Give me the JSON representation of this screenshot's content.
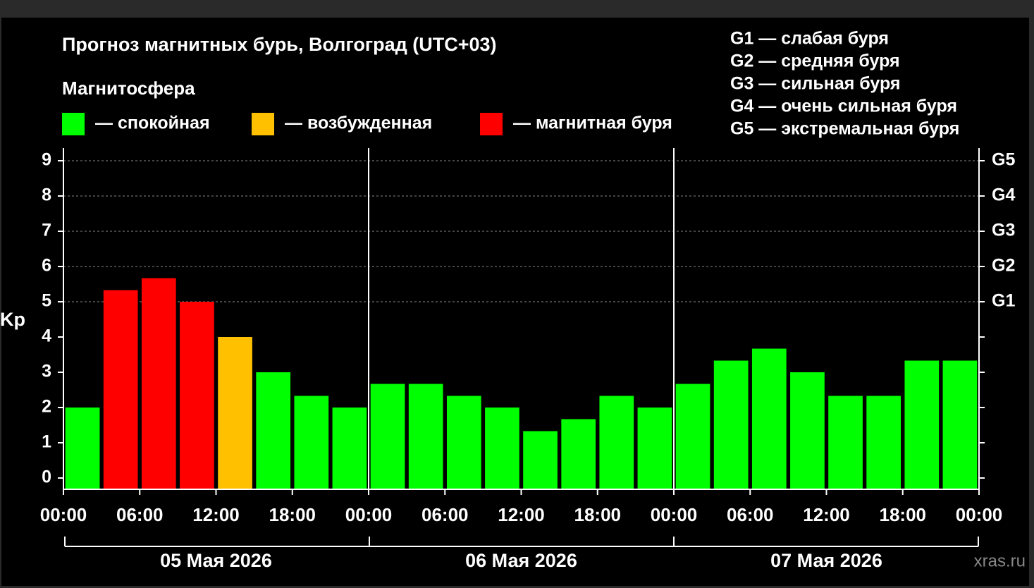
{
  "chart_data": {
    "type": "bar",
    "title": "Прогноз магнитных бурь, Волгоград (UTC+03)",
    "legend_title": "Магнитосфера",
    "legend": [
      {
        "name": "— спокойная",
        "color": "#00ff00"
      },
      {
        "name": "— возбужденная",
        "color": "#ffc000"
      },
      {
        "name": "— магнитная буря",
        "color": "#ff0000"
      }
    ],
    "storm_scale": [
      "G1 — слабая буря",
      "G2 — средняя буря",
      "G3 — сильная буря",
      "G4 — очень сильная буря",
      "G5 — экстремальная буря"
    ],
    "y_label": "Kp",
    "x": [
      1.5,
      4.5,
      7.5,
      10.5,
      13.5,
      16.5,
      19.5,
      22.5,
      25.5,
      28.5,
      31.5,
      34.5,
      37.5,
      40.5,
      43.5,
      46.5,
      49.5,
      52.5,
      55.5,
      58.5,
      61.5,
      64.5,
      67.5,
      70.5
    ],
    "values": [
      2,
      5.33,
      5.67,
      5,
      4,
      3,
      2.33,
      2,
      2.67,
      2.67,
      2.33,
      2,
      1.33,
      1.67,
      2.33,
      2,
      2.67,
      3.33,
      3.67,
      3,
      2.33,
      2.33,
      3.33,
      3.33
    ],
    "colors": [
      "#00ff00",
      "#ff0000",
      "#ff0000",
      "#ff0000",
      "#ffc000",
      "#00ff00",
      "#00ff00",
      "#00ff00",
      "#00ff00",
      "#00ff00",
      "#00ff00",
      "#00ff00",
      "#00ff00",
      "#00ff00",
      "#00ff00",
      "#00ff00",
      "#00ff00",
      "#00ff00",
      "#00ff00",
      "#00ff00",
      "#00ff00",
      "#00ff00",
      "#00ff00",
      "#00ff00"
    ],
    "xlim": [
      0,
      72
    ],
    "xticks": [
      {
        "value": 0,
        "label": "00:00"
      },
      {
        "value": 6,
        "label": "06:00"
      },
      {
        "value": 12,
        "label": "12:00"
      },
      {
        "value": 18,
        "label": "18:00"
      },
      {
        "value": 24,
        "label": "00:00"
      },
      {
        "value": 30,
        "label": "06:00"
      },
      {
        "value": 36,
        "label": "12:00"
      },
      {
        "value": 42,
        "label": "18:00"
      },
      {
        "value": 48,
        "label": "00:00"
      },
      {
        "value": 54,
        "label": "06:00"
      },
      {
        "value": 60,
        "label": "12:00"
      },
      {
        "value": 66,
        "label": "18:00"
      },
      {
        "value": 72,
        "label": "00:00"
      }
    ],
    "day_separators": [
      24,
      48
    ],
    "dates": [
      "05 Мая 2026",
      "06 Мая 2026",
      "07 Мая 2026"
    ],
    "ylim": [
      -0.32,
      9.36
    ],
    "yticks": [
      0,
      1,
      2,
      3,
      4,
      5,
      6,
      7,
      8,
      9
    ],
    "y2lim": [
      -0.32,
      9.36
    ],
    "y2ticks": [
      {
        "value": 5,
        "label": "G1"
      },
      {
        "value": 6,
        "label": "G2"
      },
      {
        "value": 7,
        "label": "G3"
      },
      {
        "value": 8,
        "label": "G4"
      },
      {
        "value": 9,
        "label": "G5"
      }
    ],
    "grid": true,
    "watermark": "xras.ru"
  }
}
